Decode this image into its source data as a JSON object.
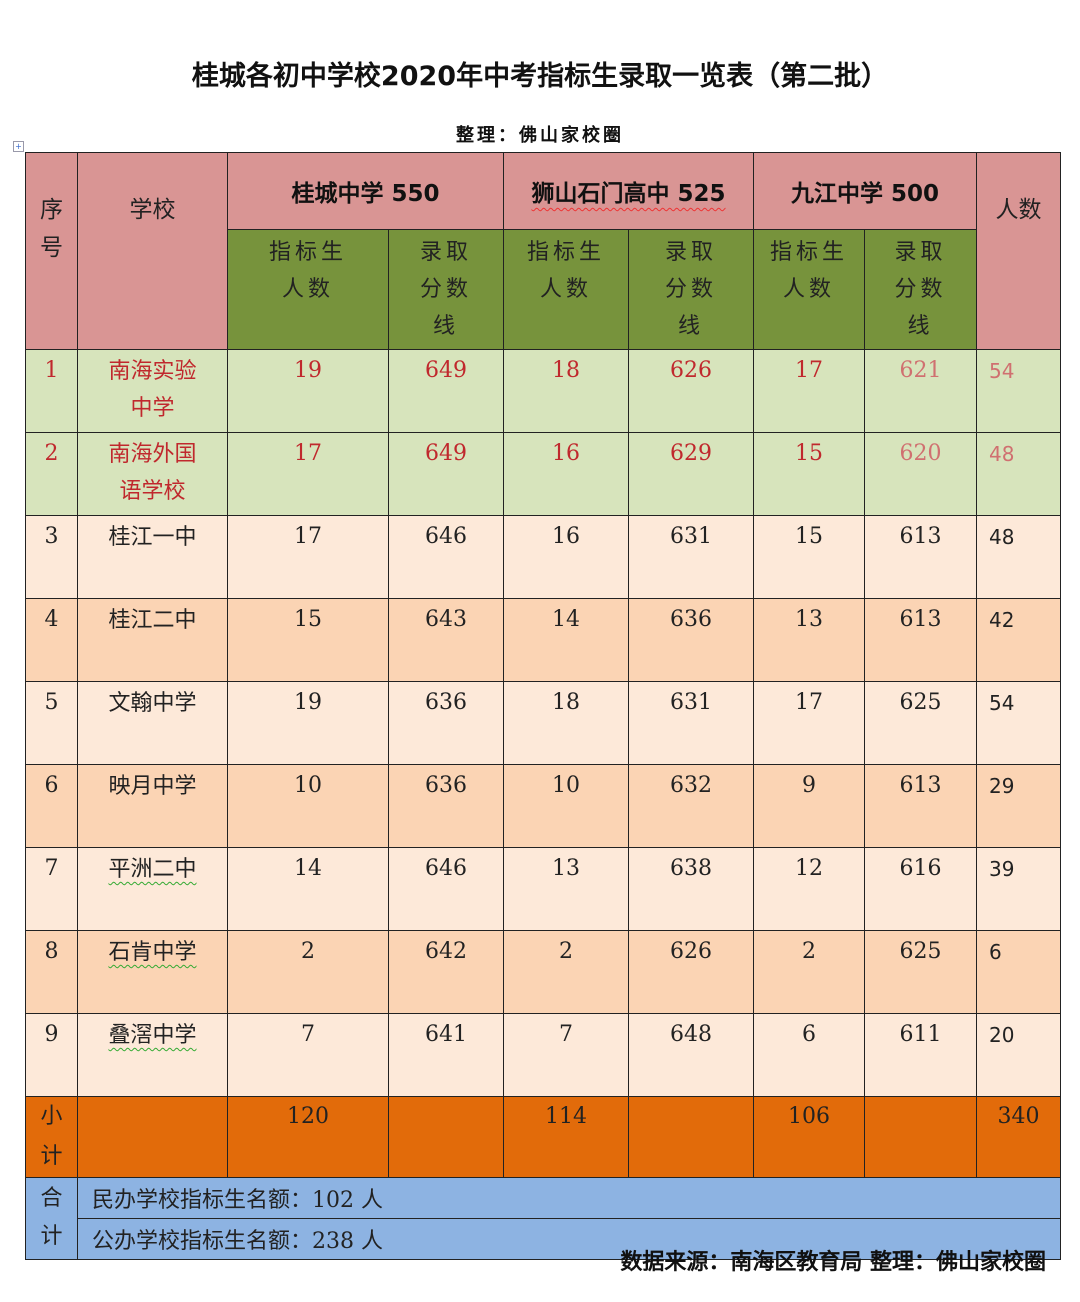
{
  "title": "桂城各初中学校2020年中考指标生录取一览表（第二批）",
  "subtitle": "整理：佛山家校圈",
  "header": {
    "seq": "序号",
    "school": "学校",
    "groups": [
      "桂城中学 550",
      "狮山石门高中 525",
      "九江中学 500"
    ],
    "total": "人数",
    "quota": "指标生人数",
    "cutoff": "录取分数线"
  },
  "rows": [
    {
      "seq": "1",
      "school": "南海实验中学",
      "v": [
        "19",
        "649",
        "18",
        "626",
        "17",
        "621"
      ],
      "total": "54"
    },
    {
      "seq": "2",
      "school": "南海外国语学校",
      "v": [
        "17",
        "649",
        "16",
        "629",
        "15",
        "620"
      ],
      "total": "48"
    },
    {
      "seq": "3",
      "school": "桂江一中",
      "v": [
        "17",
        "646",
        "16",
        "631",
        "15",
        "613"
      ],
      "total": "48"
    },
    {
      "seq": "4",
      "school": "桂江二中",
      "v": [
        "15",
        "643",
        "14",
        "636",
        "13",
        "613"
      ],
      "total": "42"
    },
    {
      "seq": "5",
      "school": "文翰中学",
      "v": [
        "19",
        "636",
        "18",
        "631",
        "17",
        "625"
      ],
      "total": "54"
    },
    {
      "seq": "6",
      "school": "映月中学",
      "v": [
        "10",
        "636",
        "10",
        "632",
        "9",
        "613"
      ],
      "total": "29"
    },
    {
      "seq": "7",
      "school": "平洲二中",
      "v": [
        "14",
        "646",
        "13",
        "638",
        "12",
        "616"
      ],
      "total": "39"
    },
    {
      "seq": "8",
      "school": "石肯中学",
      "v": [
        "2",
        "642",
        "2",
        "626",
        "2",
        "625"
      ],
      "total": "6"
    },
    {
      "seq": "9",
      "school": "叠滘中学",
      "v": [
        "7",
        "641",
        "7",
        "648",
        "6",
        "611"
      ],
      "total": "20"
    }
  ],
  "subtotal": {
    "label": "小计",
    "values": [
      "120",
      "114",
      "106"
    ],
    "total": "340"
  },
  "combined": {
    "label": "合计",
    "private": "民办学校指标生名额：102 人",
    "public": "公办学校指标生名额：238 人"
  },
  "source": "数据来源：南海区教育局  整理：佛山家校圈"
}
